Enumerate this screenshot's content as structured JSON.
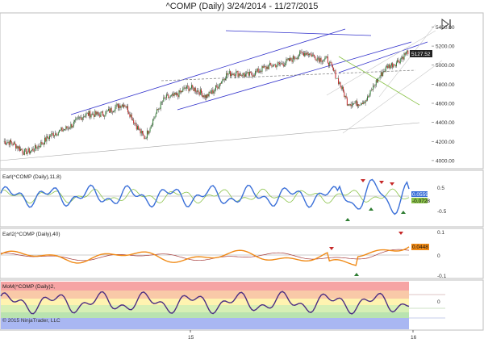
{
  "chart_title": "^COMP (Daily)  3/24/2014 - 11/27/2015",
  "copyright": "© 2015 NinjaTrader, LLC",
  "colors": {
    "up": "#2e7d32",
    "down": "#c62828",
    "channel": "#3333cc",
    "gray_line": "#9a9a9a",
    "green_line": "#8bc34a",
    "earl_line": "#3a6fd8",
    "earl2_line": "#f08a16",
    "earl2_signal": "#a53b3b",
    "mom_line": "#4b2d83"
  },
  "chart_data": [
    {
      "type": "line",
      "panel": "price",
      "y_ticks": [
        "5400.00",
        "5200.00",
        "5000.00",
        "4800.00",
        "4600.00",
        "4400.00",
        "4200.00",
        "4000.00"
      ],
      "ylim": [
        3940,
        5480
      ],
      "last_label": "5127.52",
      "x_ticks": [
        "15",
        "16"
      ],
      "x": [
        "2014-03",
        "2014-04",
        "2014-05",
        "2014-06",
        "2014-07",
        "2014-08",
        "2014-09",
        "2014-10",
        "2014-11",
        "2014-12",
        "2015-01",
        "2015-02",
        "2015-03",
        "2015-04",
        "2015-05",
        "2015-06",
        "2015-07",
        "2015-08",
        "2015-09",
        "2015-10",
        "2015-11"
      ],
      "values": [
        4200,
        4100,
        4180,
        4350,
        4450,
        4520,
        4570,
        4250,
        4650,
        4760,
        4680,
        4880,
        4920,
        4950,
        5060,
        5110,
        5080,
        4600,
        4650,
        5000,
        5127.52
      ]
    },
    {
      "type": "line",
      "panel": "earl",
      "label": "Earl(^COMP (Daily),11,8)",
      "y_ticks": [
        "0.5",
        "-0.5"
      ],
      "last_labels": [
        "0.0559",
        "-0.0728"
      ],
      "ylim": [
        -0.9,
        0.8
      ]
    },
    {
      "type": "line",
      "panel": "earl2",
      "label": "Earl2(^COMP (Daily),40)",
      "y_ticks": [
        "0.1",
        "0",
        "-0.1"
      ],
      "last_label": "0.0448",
      "ylim": [
        -0.12,
        0.12
      ]
    },
    {
      "type": "line",
      "panel": "mom",
      "label": "MoM(^COMP (Daily)2,",
      "y_ticks": [
        "0"
      ],
      "ylim": [
        -1,
        1
      ]
    }
  ]
}
